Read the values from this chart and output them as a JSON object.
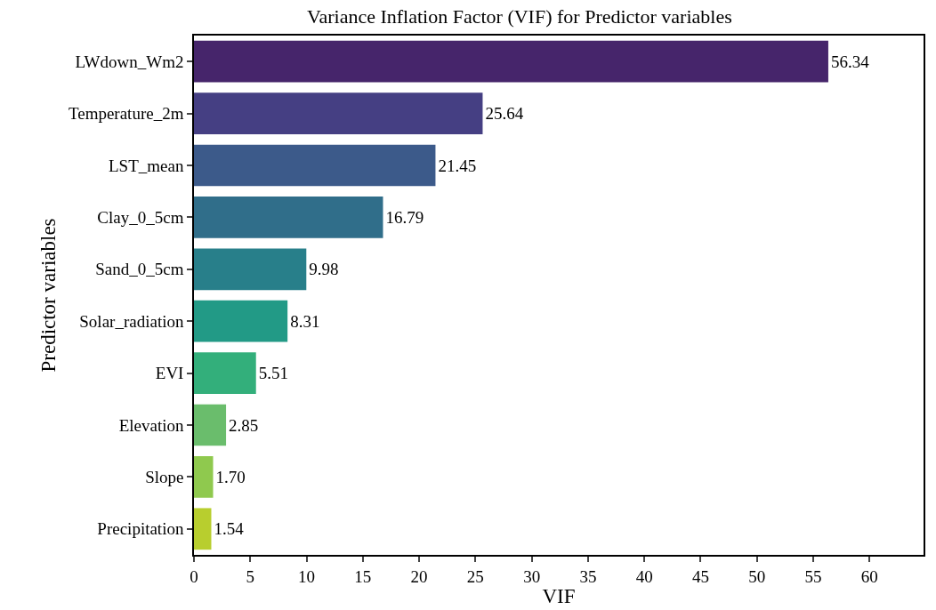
{
  "chart_data": {
    "type": "bar",
    "orientation": "horizontal",
    "title": "Variance Inflation Factor (VIF) for Predictor variables",
    "xlabel": "VIF",
    "ylabel": "Predictor variables",
    "categories": [
      "LWdown_Wm2",
      "Temperature_2m",
      "LST_mean",
      "Clay_0_5cm",
      "Sand_0_5cm",
      "Solar_radiation",
      "EVI",
      "Elevation",
      "Slope",
      "Precipitation"
    ],
    "values": [
      56.34,
      25.64,
      21.45,
      16.79,
      9.98,
      8.31,
      5.51,
      2.85,
      1.7,
      1.54
    ],
    "value_labels": [
      "56.34",
      "25.64",
      "21.45",
      "16.79",
      "9.98",
      "8.31",
      "5.51",
      "2.85",
      "1.70",
      "1.54"
    ],
    "colors": [
      "#46256b",
      "#453f83",
      "#3c5a8a",
      "#306e8a",
      "#287f8a",
      "#229a86",
      "#33af7b",
      "#6abd6c",
      "#8fc94e",
      "#b8ce2e"
    ],
    "xlim": [
      0,
      64.8
    ],
    "xticks": [
      0,
      5,
      10,
      15,
      20,
      25,
      30,
      35,
      40,
      45,
      50,
      55,
      60
    ],
    "grid": false,
    "legend": false
  }
}
